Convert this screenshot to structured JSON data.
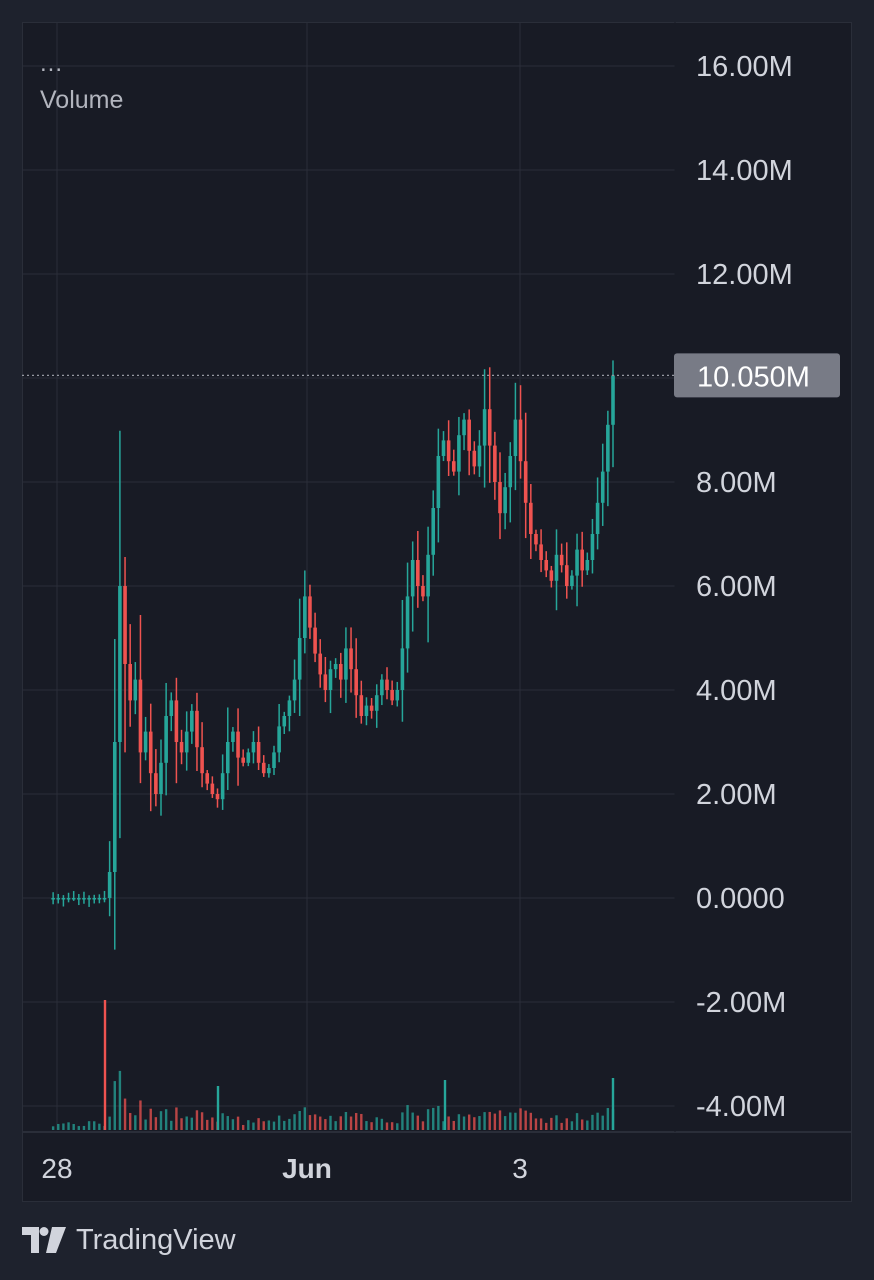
{
  "legend": {
    "dots": "...",
    "name": "Volume"
  },
  "brand": {
    "name": "TradingView",
    "logo_icon": "tradingview-logo-icon"
  },
  "colors": {
    "up": "#26a69a",
    "down": "#ef5350",
    "grid": "#2a2e39",
    "axis_text": "#d1d4dc",
    "price_label_bg": "#787b86",
    "crosshair": "#9598a1"
  },
  "chart_data": {
    "type": "candlestick",
    "y_axis": {
      "ticks": [
        16000000,
        14000000,
        12000000,
        10000000,
        8000000,
        6000000,
        4000000,
        2000000,
        0,
        -2000000,
        -4000000
      ],
      "tick_labels": [
        "16.00M",
        "14.00M",
        "12.00M",
        "",
        "8.00M",
        "6.00M",
        "4.00M",
        "2.00M",
        "0.0000",
        "-2.00M",
        "-4.00M"
      ],
      "range": [
        -4500000,
        17000000
      ]
    },
    "x_axis": {
      "tick_labels": [
        "28",
        "Jun",
        "3"
      ]
    },
    "current_value": 10050000,
    "current_value_label": "10.050M",
    "series": [
      {
        "name": "Volume",
        "approx_close_path": [
          0,
          0,
          0,
          0,
          0,
          0,
          0,
          0,
          0,
          0,
          0,
          0,
          500000,
          3000000,
          6000000,
          4500000,
          3800000,
          4200000,
          2800000,
          3200000,
          2400000,
          2000000,
          2600000,
          3500000,
          3800000,
          3000000,
          2800000,
          3200000,
          3600000,
          2900000,
          2400000,
          2200000,
          2000000,
          1900000,
          2400000,
          3000000,
          3200000,
          2700000,
          2600000,
          2800000,
          3000000,
          2600000,
          2400000,
          2500000,
          2800000,
          3300000,
          3500000,
          3800000,
          4200000,
          5000000,
          5800000,
          5200000,
          4700000,
          4300000,
          4000000,
          4400000,
          4500000,
          4200000,
          4800000,
          4400000,
          3900000,
          3500000,
          3700000,
          3600000,
          3900000,
          4200000,
          4000000,
          3800000,
          4000000,
          4800000,
          5800000,
          6500000,
          6000000,
          5800000,
          6600000,
          7500000,
          8500000,
          8800000,
          8400000,
          8200000,
          8900000,
          9200000,
          8600000,
          8300000,
          8700000,
          9400000,
          8700000,
          8000000,
          7400000,
          7900000,
          8500000,
          9200000,
          8400000,
          7600000,
          7000000,
          6800000,
          6500000,
          6300000,
          6100000,
          6600000,
          6400000,
          6000000,
          6200000,
          6700000,
          6300000,
          6500000,
          7000000,
          7600000,
          8200000,
          9100000,
          10050000
        ]
      }
    ]
  }
}
